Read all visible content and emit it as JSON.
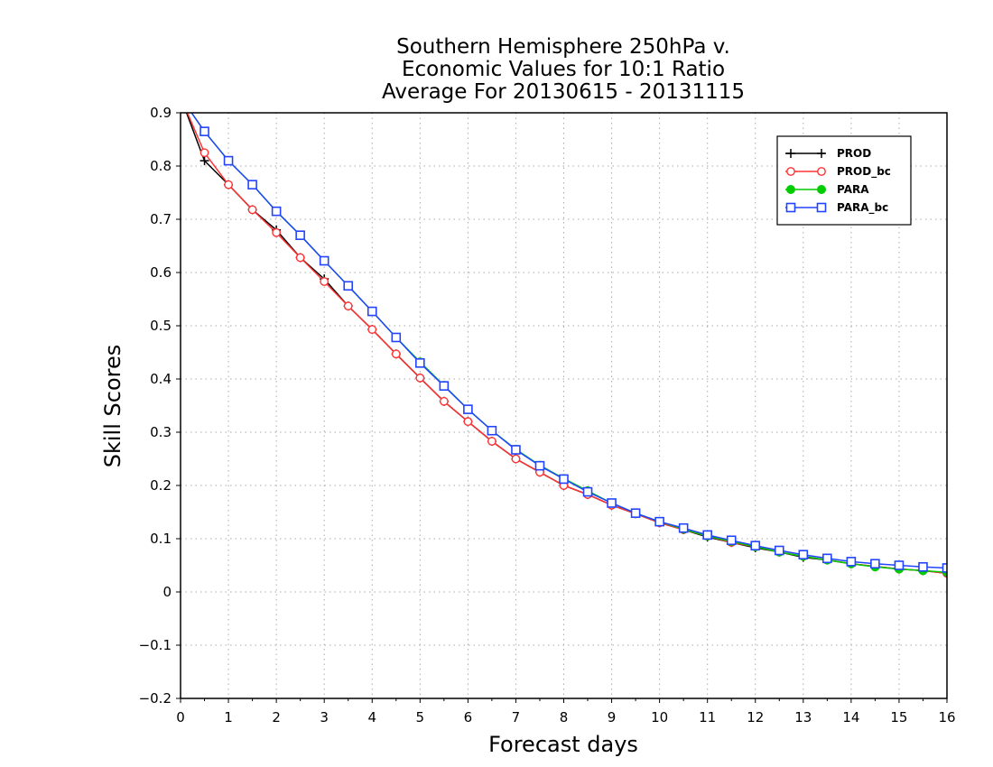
{
  "chart_data": {
    "type": "line",
    "title_lines": [
      "Southern Hemisphere 250hPa v.",
      "Economic Values for 10:1 Ratio",
      "Average For 20130615 - 20131115"
    ],
    "xlabel": "Forecast days",
    "ylabel": "Skill Scores",
    "xlim": [
      0,
      16
    ],
    "ylim": [
      -0.2,
      0.9
    ],
    "x_ticks": [
      0,
      1,
      2,
      3,
      4,
      5,
      6,
      7,
      8,
      9,
      10,
      11,
      12,
      13,
      14,
      15,
      16
    ],
    "x_tick_labels": [
      "0",
      "1",
      "2",
      "3",
      "4",
      "5",
      "6",
      "7",
      "8",
      "9",
      "10",
      "11",
      "12",
      "13",
      "14",
      "15",
      "16"
    ],
    "y_ticks": [
      -0.2,
      -0.1,
      0,
      0.1,
      0.2,
      0.3,
      0.4,
      0.5,
      0.6,
      0.7,
      0.8,
      0.9
    ],
    "y_tick_labels": [
      "−0.2",
      "−0.1",
      "0",
      "0.1",
      "0.2",
      "0.3",
      "0.4",
      "0.5",
      "0.6",
      "0.7",
      "0.8",
      "0.9"
    ],
    "grid": true,
    "legend_position": "top-right",
    "x": [
      0,
      0.5,
      1,
      1.5,
      2,
      2.5,
      3,
      3.5,
      4,
      4.5,
      5,
      5.5,
      6,
      6.5,
      7,
      7.5,
      8,
      8.5,
      9,
      9.5,
      10,
      10.5,
      11,
      11.5,
      12,
      12.5,
      13,
      13.5,
      14,
      14.5,
      15,
      15.5,
      16
    ],
    "series": [
      {
        "name": "PROD",
        "color": "#000000",
        "marker": "plus",
        "values": [
          0.93,
          0.81,
          0.765,
          0.718,
          0.68,
          0.628,
          0.588,
          0.537,
          0.493,
          0.447,
          0.402,
          0.358,
          0.32,
          0.283,
          0.25,
          0.225,
          0.2,
          0.183,
          0.163,
          0.147,
          0.13,
          0.117,
          0.103,
          0.093,
          0.083,
          0.075,
          0.065,
          0.06,
          0.053,
          0.048,
          0.043,
          0.04,
          0.035
        ]
      },
      {
        "name": "PROD_bc",
        "color": "#ff3333",
        "marker": "circle-open",
        "values": [
          0.93,
          0.825,
          0.765,
          0.718,
          0.675,
          0.628,
          0.583,
          0.537,
          0.493,
          0.447,
          0.402,
          0.358,
          0.32,
          0.283,
          0.25,
          0.225,
          0.2,
          0.183,
          0.163,
          0.147,
          0.13,
          0.117,
          0.105,
          0.093,
          0.085,
          0.075,
          0.067,
          0.06,
          0.053,
          0.048,
          0.043,
          0.04,
          0.035
        ]
      },
      {
        "name": "PARA",
        "color": "#00cc00",
        "marker": "circle-filled",
        "values": [
          0.93,
          0.865,
          0.81,
          0.765,
          0.715,
          0.67,
          0.622,
          0.575,
          0.527,
          0.478,
          0.432,
          0.388,
          0.343,
          0.303,
          0.268,
          0.238,
          0.213,
          0.19,
          0.167,
          0.148,
          0.132,
          0.118,
          0.105,
          0.095,
          0.085,
          0.075,
          0.067,
          0.06,
          0.053,
          0.047,
          0.043,
          0.04,
          0.037
        ]
      },
      {
        "name": "PARA_bc",
        "color": "#2244ff",
        "marker": "square-open",
        "values": [
          0.93,
          0.865,
          0.81,
          0.765,
          0.715,
          0.67,
          0.622,
          0.575,
          0.527,
          0.478,
          0.43,
          0.387,
          0.343,
          0.303,
          0.267,
          0.237,
          0.212,
          0.188,
          0.167,
          0.148,
          0.132,
          0.12,
          0.107,
          0.097,
          0.087,
          0.078,
          0.07,
          0.063,
          0.057,
          0.053,
          0.05,
          0.047,
          0.045
        ]
      }
    ]
  }
}
